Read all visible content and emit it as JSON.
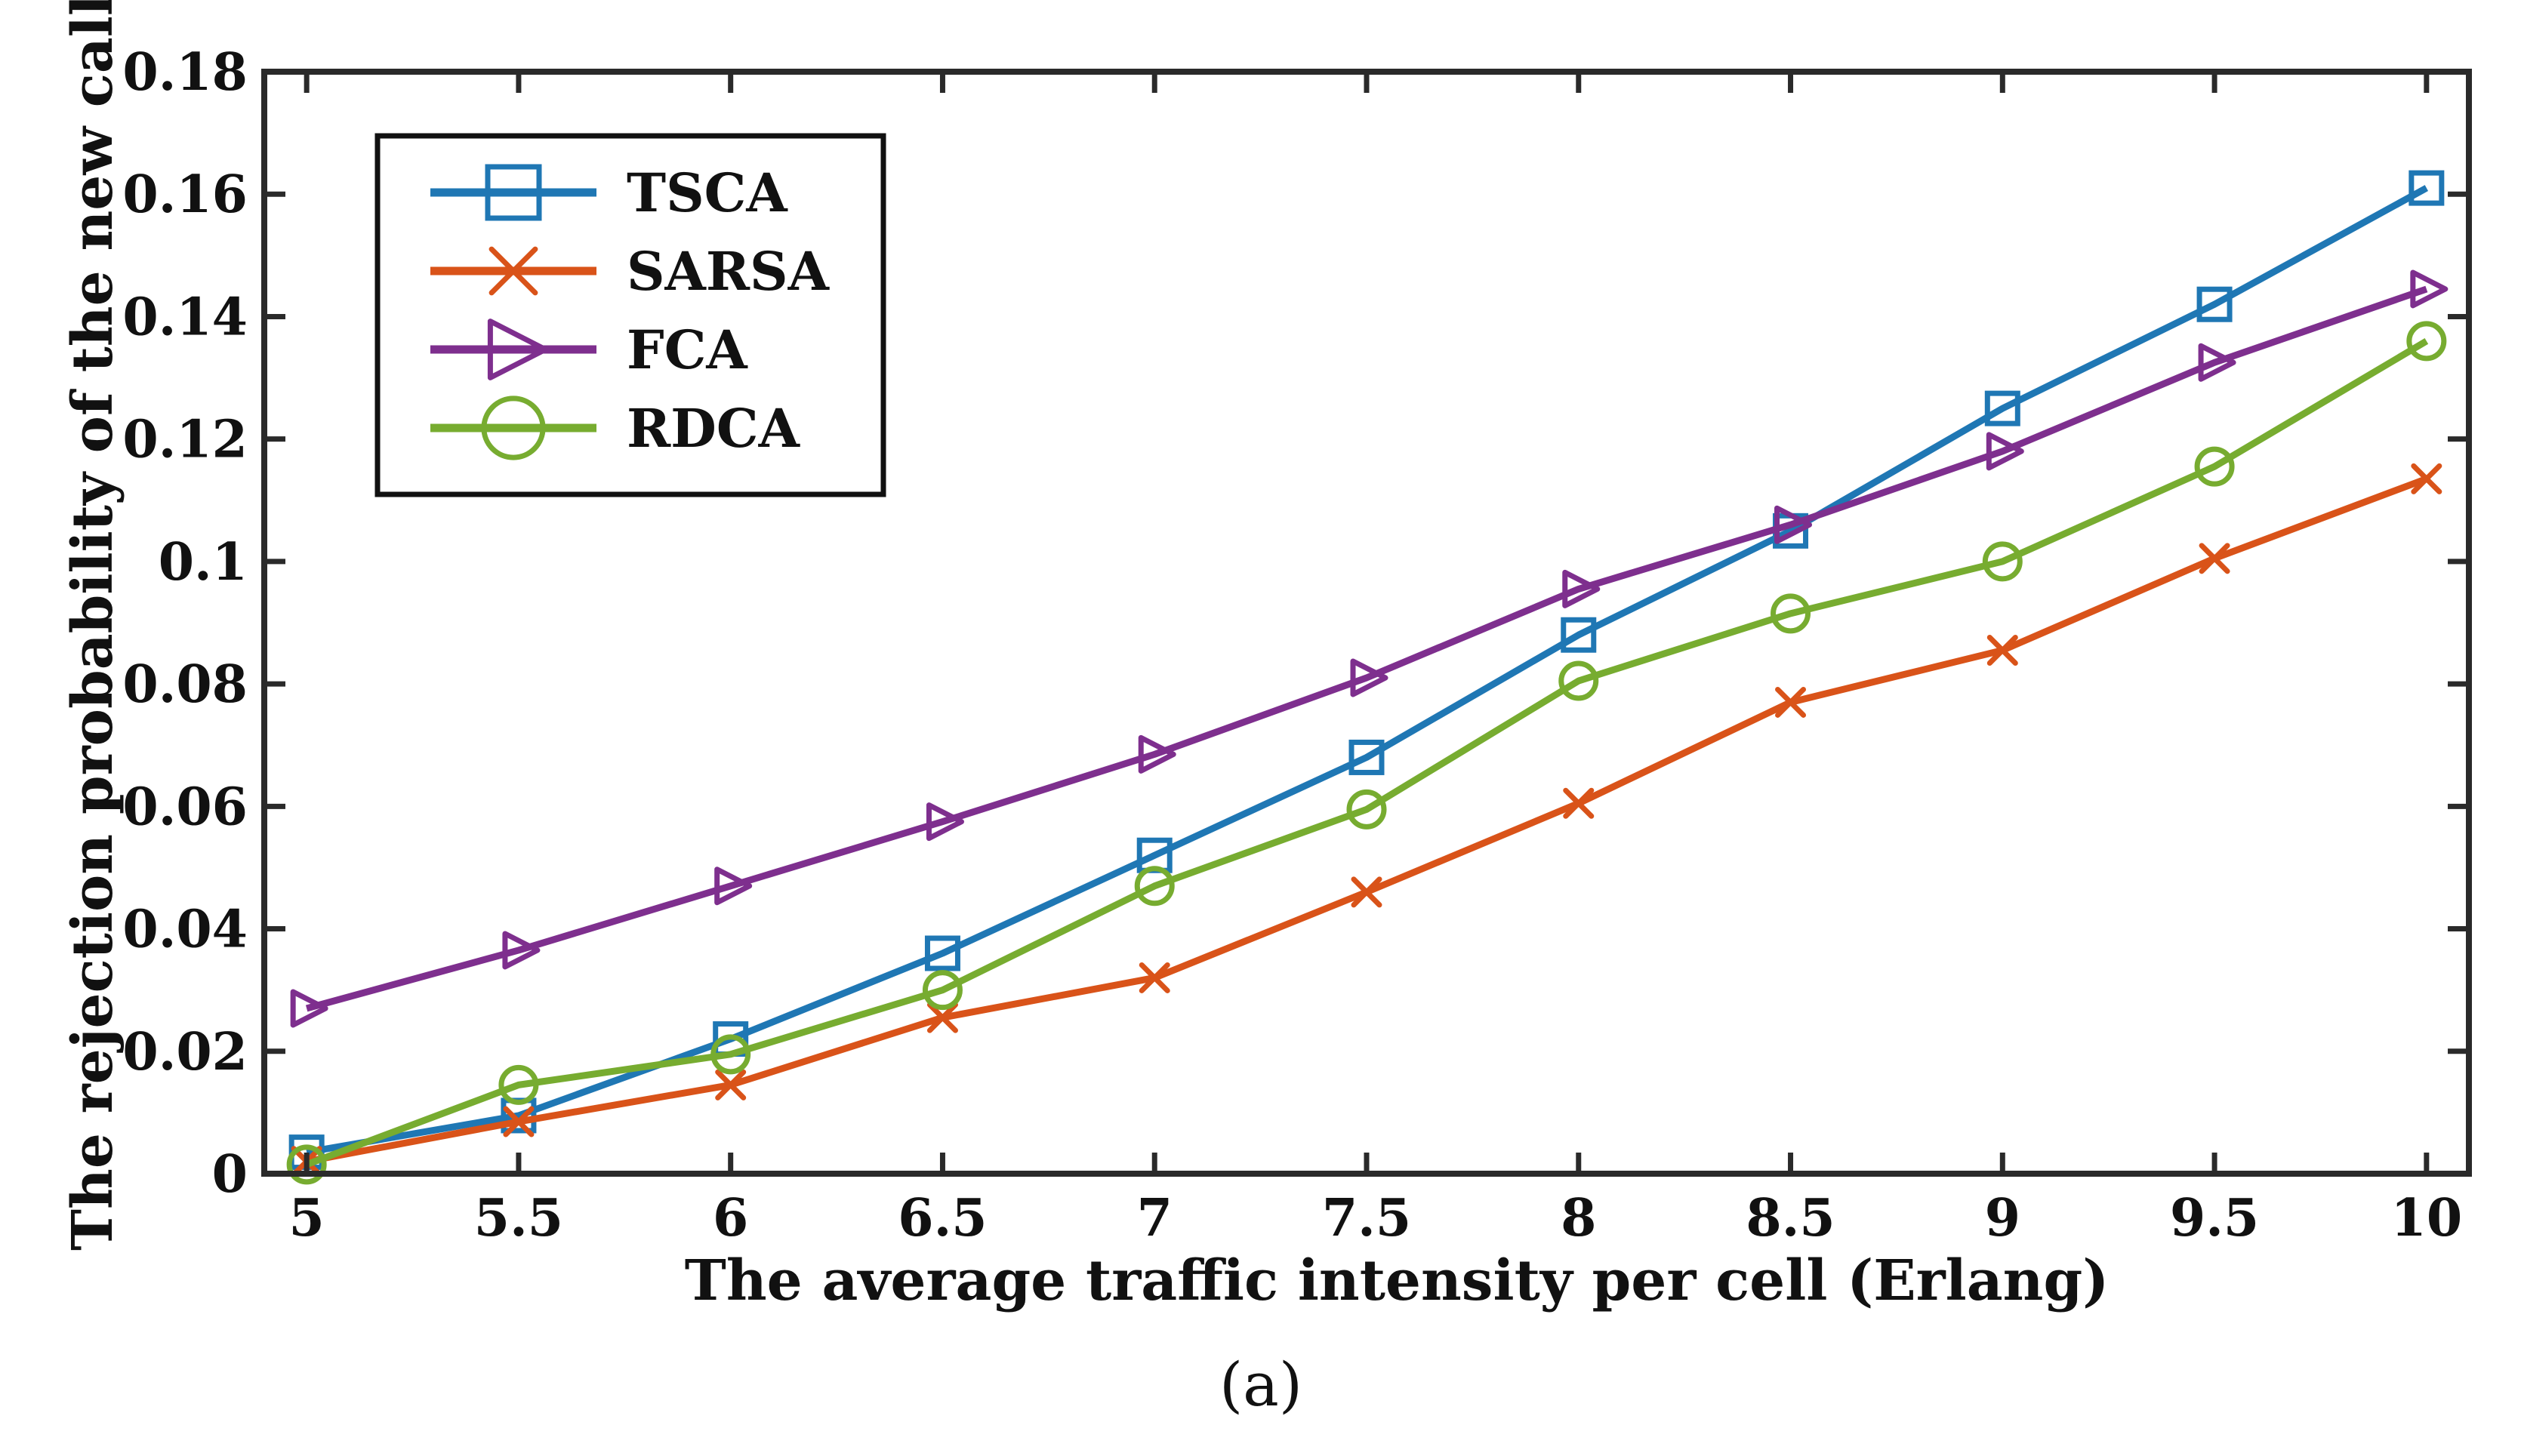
{
  "chart_data": {
    "type": "line",
    "title": "",
    "xlabel": "The average traffic intensity per cell (Erlang)",
    "ylabel": "The rejection probability of the new call",
    "caption": "(a)",
    "xlim": [
      4.9,
      10.1
    ],
    "ylim": [
      0,
      0.18
    ],
    "x": [
      5,
      5.5,
      6,
      6.5,
      7,
      7.5,
      8,
      8.5,
      9,
      9.5,
      10
    ],
    "x_ticks": [
      5,
      5.5,
      6,
      6.5,
      7,
      7.5,
      8,
      8.5,
      9,
      9.5,
      10
    ],
    "x_tick_labels": [
      "5",
      "5.5",
      "6",
      "6.5",
      "7",
      "7.5",
      "8",
      "8.5",
      "9",
      "9.5",
      "10"
    ],
    "y_ticks": [
      0,
      0.02,
      0.04,
      0.06,
      0.08,
      0.1,
      0.12,
      0.14,
      0.16,
      0.18
    ],
    "y_tick_labels": [
      "0",
      "0.02",
      "0.04",
      "0.06",
      "0.08",
      "0.1",
      "0.12",
      "0.14",
      "0.16",
      "0.18"
    ],
    "grid": false,
    "legend_position": "top-left",
    "series": [
      {
        "name": "TSCA",
        "color": "#1f77b4",
        "marker": "square",
        "values": [
          0.0035,
          0.0095,
          0.022,
          0.036,
          0.052,
          0.068,
          0.088,
          0.105,
          0.125,
          0.142,
          0.161
        ]
      },
      {
        "name": "SARSA",
        "color": "#d95319",
        "marker": "x",
        "values": [
          0.002,
          0.0085,
          0.0145,
          0.0255,
          0.032,
          0.046,
          0.0605,
          0.077,
          0.0855,
          0.1005,
          0.1135
        ]
      },
      {
        "name": "FCA",
        "color": "#7e2f8e",
        "marker": "triangle-right",
        "values": [
          0.027,
          0.0365,
          0.047,
          0.0575,
          0.0685,
          0.081,
          0.0955,
          0.106,
          0.118,
          0.1325,
          0.1445
        ]
      },
      {
        "name": "RDCA",
        "color": "#77ac30",
        "marker": "circle",
        "values": [
          0.0015,
          0.0145,
          0.0195,
          0.03,
          0.047,
          0.0595,
          0.0805,
          0.0915,
          0.1,
          0.1155,
          0.136
        ]
      }
    ]
  }
}
